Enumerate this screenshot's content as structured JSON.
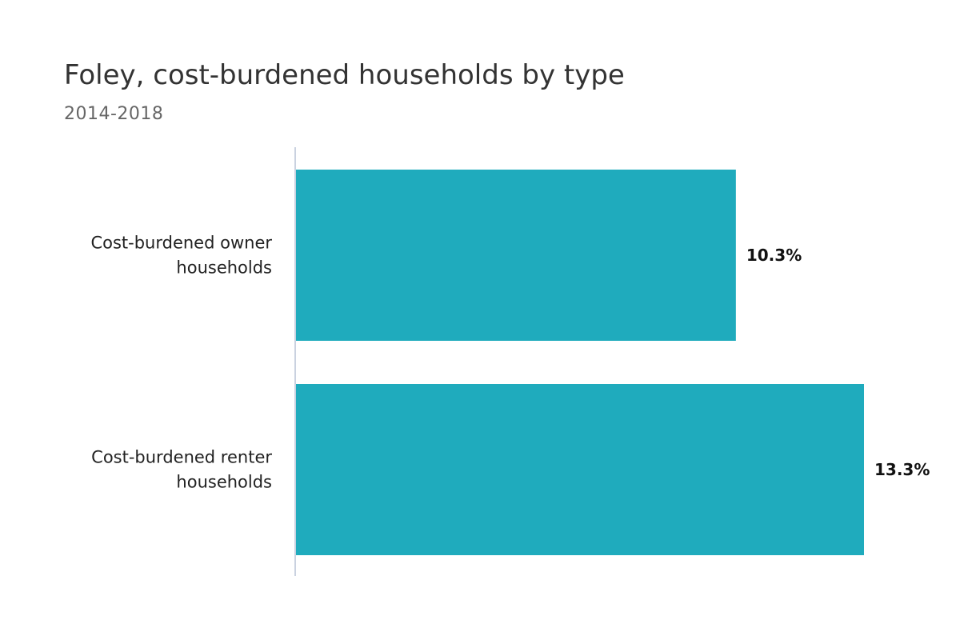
{
  "chart_data": {
    "type": "bar",
    "orientation": "horizontal",
    "title": "Foley, cost-burdened households by type",
    "subtitle": "2014-2018",
    "categories": [
      [
        "Cost-burdened owner",
        "households"
      ],
      [
        "Cost-burdened renter",
        "households"
      ]
    ],
    "values": [
      10.3,
      13.3
    ],
    "value_labels": [
      "10.3%",
      "13.3%"
    ],
    "xlim": [
      0,
      13.3
    ],
    "grid": false,
    "legend": "none",
    "colors": {
      "bar": "#1fabbd",
      "axis": "#b8c4d6"
    }
  }
}
